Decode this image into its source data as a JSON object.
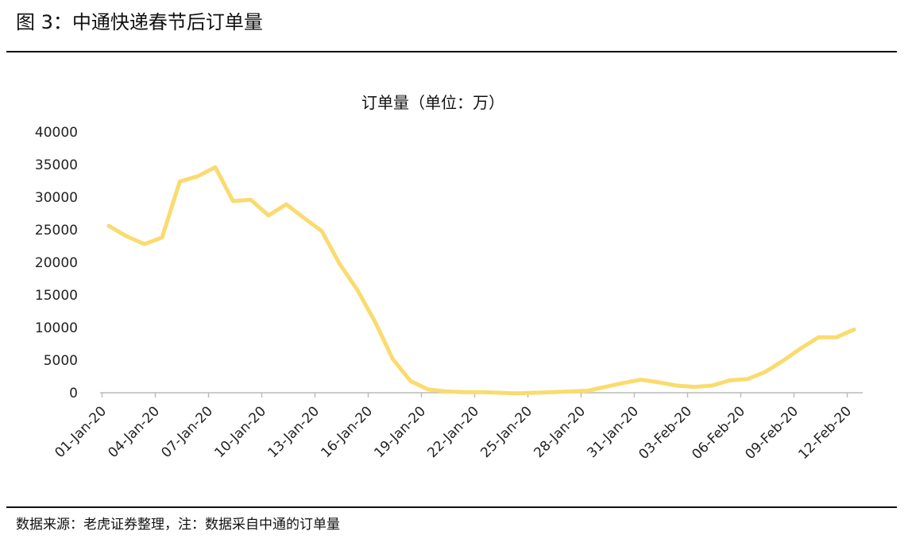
{
  "figure": {
    "title": "图 3：中通快递春节后订单量",
    "source": "数据来源：老虎证券整理，注：数据采自中通的订单量"
  },
  "colors": {
    "series": "#FADB6E",
    "axis": "#BBBBBB",
    "text": "#111111"
  },
  "chart_data": {
    "type": "line",
    "title": "订单量（单位：万）",
    "xlabel": "",
    "ylabel": "",
    "ylim": [
      0,
      40000
    ],
    "yticks": [
      0,
      5000,
      10000,
      15000,
      20000,
      25000,
      30000,
      35000,
      40000
    ],
    "grid": false,
    "legend": "none",
    "x": [
      "01-Jan-20",
      "02-Jan-20",
      "03-Jan-20",
      "04-Jan-20",
      "05-Jan-20",
      "06-Jan-20",
      "07-Jan-20",
      "08-Jan-20",
      "09-Jan-20",
      "10-Jan-20",
      "11-Jan-20",
      "12-Jan-20",
      "13-Jan-20",
      "14-Jan-20",
      "15-Jan-20",
      "16-Jan-20",
      "17-Jan-20",
      "18-Jan-20",
      "19-Jan-20",
      "20-Jan-20",
      "21-Jan-20",
      "22-Jan-20",
      "23-Jan-20",
      "24-Jan-20",
      "25-Jan-20",
      "26-Jan-20",
      "27-Jan-20",
      "28-Jan-20",
      "29-Jan-20",
      "30-Jan-20",
      "31-Jan-20",
      "01-Feb-20",
      "02-Feb-20",
      "03-Feb-20",
      "04-Feb-20",
      "05-Feb-20",
      "06-Feb-20",
      "07-Feb-20",
      "08-Feb-20",
      "09-Feb-20",
      "10-Feb-20",
      "11-Feb-20",
      "12-Feb-20"
    ],
    "xtick_labels": [
      "01-Jan-20",
      "04-Jan-20",
      "07-Jan-20",
      "10-Jan-20",
      "13-Jan-20",
      "16-Jan-20",
      "19-Jan-20",
      "22-Jan-20",
      "25-Jan-20",
      "28-Jan-20",
      "31-Jan-20",
      "03-Feb-20",
      "06-Feb-20",
      "09-Feb-20",
      "12-Feb-20"
    ],
    "series": [
      {
        "name": "",
        "values": [
          25600,
          24000,
          22800,
          23800,
          32400,
          33200,
          34600,
          29400,
          29600,
          27200,
          28900,
          26800,
          24800,
          19800,
          15800,
          10900,
          5200,
          1800,
          500,
          200,
          100,
          100,
          0,
          -100,
          0,
          100,
          200,
          300,
          900,
          1500,
          2000,
          1600,
          1100,
          900,
          1100,
          1900,
          2100,
          3200,
          4900,
          6800,
          8500,
          8500,
          9700
        ]
      }
    ]
  }
}
